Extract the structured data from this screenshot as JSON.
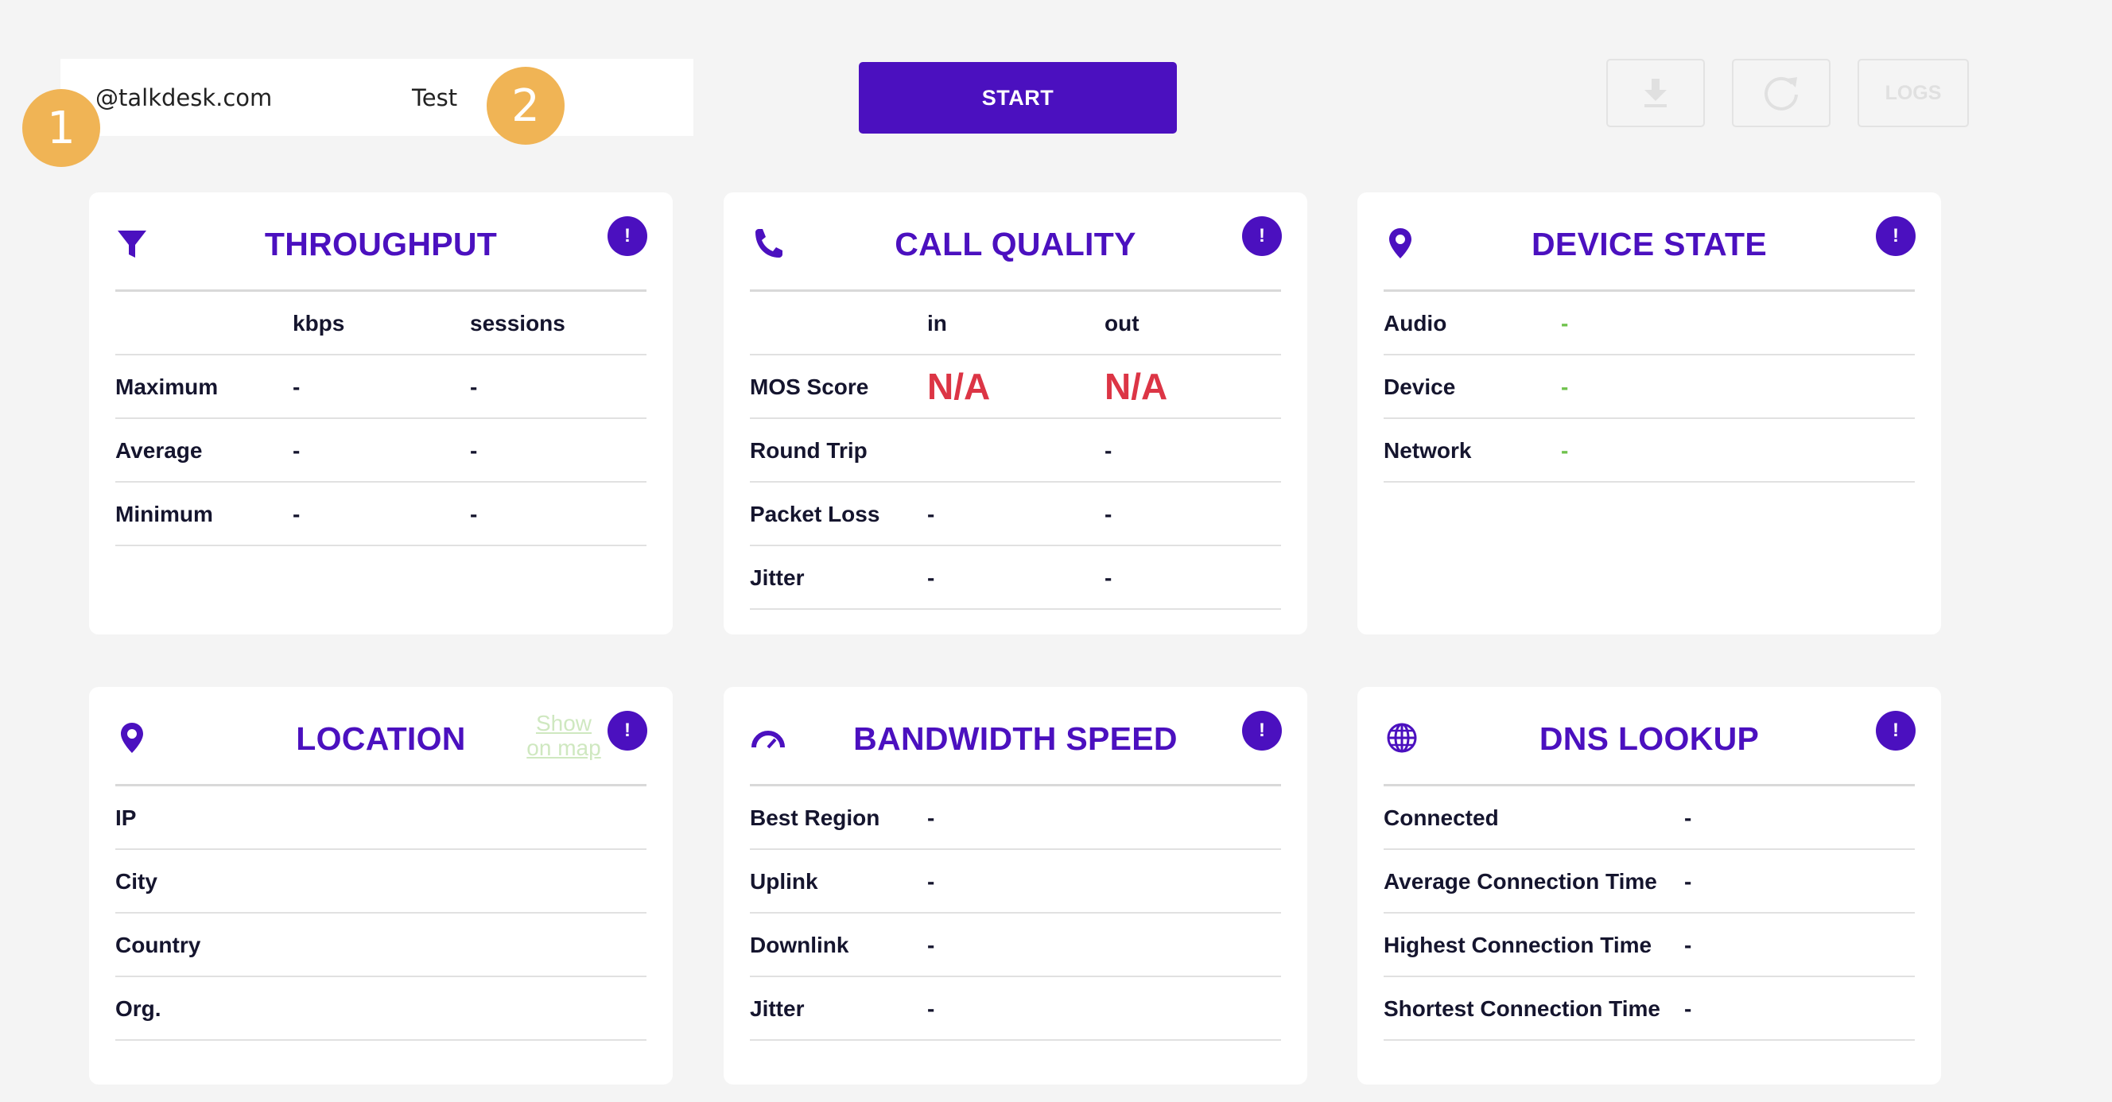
{
  "top": {
    "email": "@talkdesk.com",
    "test_label": "Test",
    "badge1": "1",
    "badge2": "2",
    "start_label": "START",
    "logs_label": "LOGS"
  },
  "throughput": {
    "title": "THROUGHPUT",
    "col1": "kbps",
    "col2": "sessions",
    "rows": [
      {
        "label": "Maximum",
        "v1": "-",
        "v2": "-"
      },
      {
        "label": "Average",
        "v1": "-",
        "v2": "-"
      },
      {
        "label": "Minimum",
        "v1": "-",
        "v2": "-"
      }
    ]
  },
  "call_quality": {
    "title": "CALL QUALITY",
    "col1": "in",
    "col2": "out",
    "rows": [
      {
        "label": "MOS Score",
        "v1": "N/A",
        "v2": "N/A"
      },
      {
        "label": "Round Trip",
        "v1": "",
        "v2": "-"
      },
      {
        "label": "Packet Loss",
        "v1": "-",
        "v2": "-"
      },
      {
        "label": "Jitter",
        "v1": "-",
        "v2": "-"
      }
    ]
  },
  "device_state": {
    "title": "DEVICE STATE",
    "rows": [
      {
        "label": "Audio",
        "value": "-"
      },
      {
        "label": "Device",
        "value": "-"
      },
      {
        "label": "Network",
        "value": "-"
      }
    ]
  },
  "location": {
    "title": "LOCATION",
    "show_map_line1": "Show",
    "show_map_line2": "on map",
    "rows": [
      {
        "label": "IP"
      },
      {
        "label": "City"
      },
      {
        "label": "Country"
      },
      {
        "label": "Org."
      }
    ]
  },
  "bandwidth": {
    "title": "BANDWIDTH SPEED",
    "rows": [
      {
        "label": "Best Region",
        "value": "-"
      },
      {
        "label": "Uplink",
        "value": "-"
      },
      {
        "label": "Downlink",
        "value": "-"
      },
      {
        "label": "Jitter",
        "value": "-"
      }
    ]
  },
  "dns": {
    "title": "DNS LOOKUP",
    "rows": [
      {
        "label": "Connected",
        "value": "-"
      },
      {
        "label": "Average Connection Time",
        "value": "-"
      },
      {
        "label": "Highest Connection Time",
        "value": "-"
      },
      {
        "label": "Shortest Connection Time",
        "value": "-"
      }
    ]
  },
  "colors": {
    "accent": "#4b10bf",
    "badge": "#f0b455",
    "na": "#dc3545",
    "ok": "#6fc24c"
  },
  "icons": {
    "throughput": "funnel-icon",
    "call_quality": "phone-icon",
    "device_state": "map-pin-icon",
    "location": "map-pin-icon",
    "bandwidth": "speedometer-icon",
    "dns": "globe-icon",
    "info": "exclamation-icon",
    "download": "download-icon",
    "refresh": "refresh-icon"
  }
}
